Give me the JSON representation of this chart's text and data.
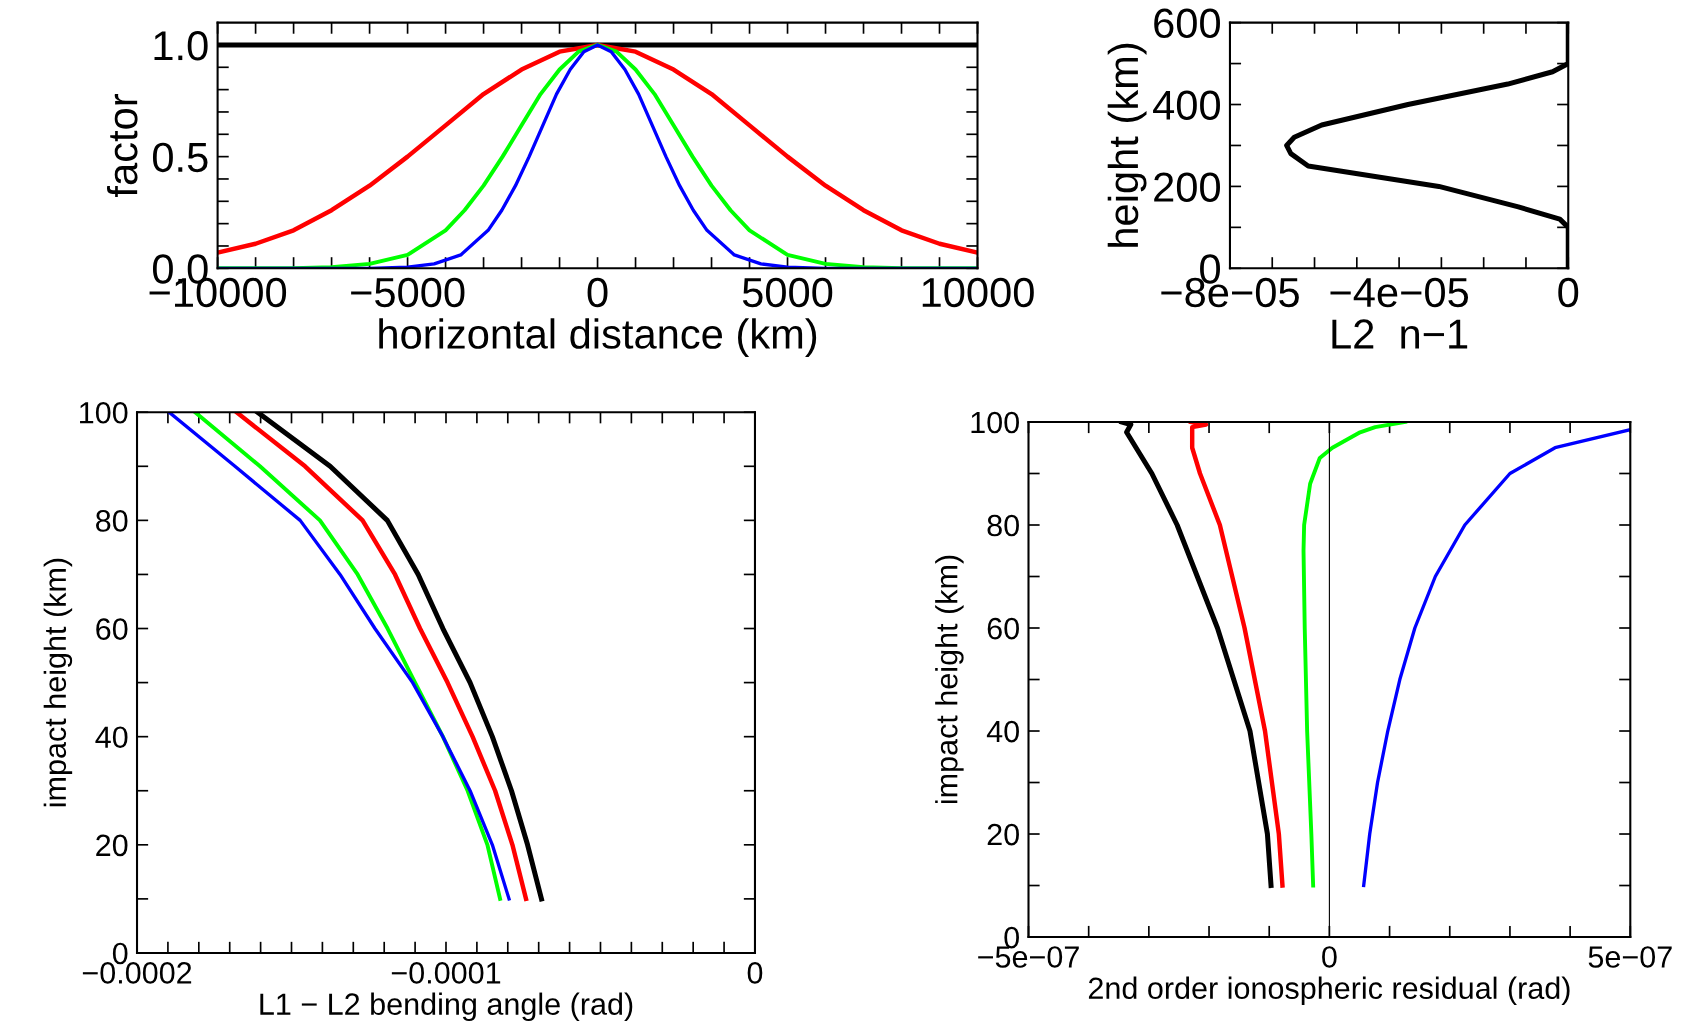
{
  "chart_data": [
    {
      "type": "line",
      "xlabel": "horizontal distance (km)",
      "ylabel": "factor",
      "xlim": [
        -10000,
        10000
      ],
      "ylim": [
        0,
        1.1
      ],
      "xticks": [
        {
          "value": -10000,
          "label": "−10000"
        },
        {
          "value": -9000,
          "label": null
        },
        {
          "value": -8000,
          "label": null
        },
        {
          "value": -7000,
          "label": null
        },
        {
          "value": -6000,
          "label": null
        },
        {
          "value": -5000,
          "label": "−5000"
        },
        {
          "value": -4000,
          "label": null
        },
        {
          "value": -3000,
          "label": null
        },
        {
          "value": -2000,
          "label": null
        },
        {
          "value": -1000,
          "label": null
        },
        0,
        {
          "value": 1000,
          "label": null
        },
        {
          "value": 2000,
          "label": null
        },
        {
          "value": 3000,
          "label": null
        },
        {
          "value": 4000,
          "label": null
        },
        5000,
        {
          "value": 6000,
          "label": null
        },
        {
          "value": 7000,
          "label": null
        },
        {
          "value": 8000,
          "label": null
        },
        {
          "value": 9000,
          "label": null
        },
        10000
      ],
      "yticks": [
        {
          "value": 0,
          "label": "0.0"
        },
        {
          "value": 0.1,
          "label": null
        },
        {
          "value": 0.2,
          "label": null
        },
        {
          "value": 0.3,
          "label": null
        },
        {
          "value": 0.4,
          "label": null
        },
        {
          "value": 0.5,
          "label": "0.5"
        },
        {
          "value": 0.6,
          "label": null
        },
        {
          "value": 0.7,
          "label": null
        },
        {
          "value": 0.8,
          "label": null
        },
        {
          "value": 0.9,
          "label": null
        },
        {
          "value": 1.0,
          "label": "1.0"
        }
      ],
      "line_style": "solid",
      "marker": "none",
      "series": [
        {
          "color": "#000000",
          "x": [
            -10000,
            10000
          ],
          "values": [
            1,
            1
          ]
        },
        {
          "color": "#ff0000",
          "x": [
            -10000,
            -9000,
            -8000,
            -7000,
            -6000,
            -5000,
            -4000,
            -3000,
            -2000,
            -1000,
            0,
            1000,
            2000,
            3000,
            4000,
            5000,
            6000,
            7000,
            8000,
            9000,
            10000
          ],
          "values": [
            0.07,
            0.11,
            0.17,
            0.26,
            0.37,
            0.5,
            0.64,
            0.78,
            0.89,
            0.97,
            1,
            0.97,
            0.89,
            0.78,
            0.64,
            0.5,
            0.37,
            0.26,
            0.17,
            0.11,
            0.07
          ]
        },
        {
          "color": "#00ff00",
          "x": [
            -10000,
            -8000,
            -7000,
            -6000,
            -5000,
            -4000,
            -3500,
            -3000,
            -2500,
            -2000,
            -1500,
            -1000,
            -500,
            0,
            500,
            1000,
            1500,
            2000,
            2500,
            3000,
            3500,
            4000,
            5000,
            6000,
            7000,
            8000,
            10000
          ],
          "values": [
            0,
            0,
            0.005,
            0.02,
            0.06,
            0.17,
            0.26,
            0.37,
            0.5,
            0.64,
            0.78,
            0.89,
            0.97,
            1,
            0.97,
            0.89,
            0.78,
            0.64,
            0.5,
            0.37,
            0.26,
            0.17,
            0.06,
            0.02,
            0.005,
            0,
            0
          ]
        },
        {
          "color": "#0000ff",
          "x": [
            -10000,
            -6000,
            -5000,
            -4300,
            -3600,
            -2880,
            -2520,
            -2160,
            -1800,
            -1440,
            -1080,
            -720,
            -360,
            0,
            360,
            720,
            1080,
            1440,
            1800,
            2160,
            2520,
            2880,
            3600,
            4300,
            5000,
            6000,
            10000
          ],
          "values": [
            0,
            0,
            0.005,
            0.02,
            0.06,
            0.17,
            0.26,
            0.37,
            0.5,
            0.64,
            0.78,
            0.89,
            0.97,
            1,
            0.97,
            0.89,
            0.78,
            0.64,
            0.5,
            0.37,
            0.26,
            0.17,
            0.06,
            0.02,
            0.005,
            0,
            0
          ]
        }
      ]
    },
    {
      "type": "line",
      "xlabel": "L2  n−1",
      "ylabel": "height (km)",
      "xlim": [
        -8e-05,
        0
      ],
      "ylim": [
        0,
        600
      ],
      "xticks": [
        {
          "value": -8e-05,
          "label": "−8e−05"
        },
        {
          "value": -7e-05,
          "label": null
        },
        {
          "value": -6e-05,
          "label": null
        },
        {
          "value": -5e-05,
          "label": null
        },
        {
          "value": -4e-05,
          "label": "−4e−05"
        },
        {
          "value": -3e-05,
          "label": null
        },
        {
          "value": -2e-05,
          "label": null
        },
        {
          "value": -1e-05,
          "label": null
        },
        0
      ],
      "yticks": [
        0,
        {
          "value": 100,
          "label": null
        },
        200,
        {
          "value": 300,
          "label": null
        },
        400,
        {
          "value": 500,
          "label": null
        },
        600
      ],
      "line_style": "solid",
      "marker": "none",
      "series": [
        {
          "color": "#000000",
          "x": [
            0,
            0,
            -2e-06,
            -1.18e-05,
            -3.06e-05,
            -6.15e-05,
            -6.56e-05,
            -6.66e-05,
            -6.48e-05,
            -5.83e-05,
            -3.79e-05,
            -1.43e-05,
            -3.7e-06,
            0,
            0
          ],
          "values": [
            0,
            100,
            120,
            150,
            200,
            250,
            280,
            300,
            320,
            350,
            400,
            450,
            480,
            500,
            600
          ]
        }
      ]
    },
    {
      "type": "line",
      "xlabel": "L1 − L2 bending angle (rad)",
      "ylabel": "impact height (km)",
      "xlim": [
        -0.0002,
        0
      ],
      "ylim": [
        0,
        100
      ],
      "xticks": [
        {
          "value": -0.0002,
          "label": "−0.0002"
        },
        {
          "value": -0.00019,
          "label": null
        },
        {
          "value": -0.00018,
          "label": null
        },
        {
          "value": -0.00017,
          "label": null
        },
        {
          "value": -0.00016,
          "label": null
        },
        {
          "value": -0.00015,
          "label": null
        },
        {
          "value": -0.00014,
          "label": null
        },
        {
          "value": -0.00013,
          "label": null
        },
        {
          "value": -0.00012,
          "label": null
        },
        {
          "value": -0.00011,
          "label": null
        },
        {
          "value": -0.0001,
          "label": "−0.0001"
        },
        {
          "value": -9e-05,
          "label": null
        },
        {
          "value": -8e-05,
          "label": null
        },
        {
          "value": -7e-05,
          "label": null
        },
        {
          "value": -6e-05,
          "label": null
        },
        {
          "value": -5e-05,
          "label": null
        },
        {
          "value": -4e-05,
          "label": null
        },
        {
          "value": -3e-05,
          "label": null
        },
        {
          "value": -2e-05,
          "label": null
        },
        {
          "value": -1e-05,
          "label": null
        },
        0
      ],
      "yticks": [
        0,
        {
          "value": 10,
          "label": null
        },
        20,
        {
          "value": 30,
          "label": null
        },
        40,
        {
          "value": 50,
          "label": null
        },
        60,
        {
          "value": 70,
          "label": null
        },
        80,
        {
          "value": 90,
          "label": null
        },
        100
      ],
      "line_style": "solid",
      "marker": "none",
      "series": [
        {
          "color": "#000000",
          "x": [
            -6.91e-05,
            -7.36e-05,
            -7.88e-05,
            -8.5e-05,
            -9.22e-05,
            -0.000101,
            -0.000109,
            -0.000119,
            -0.0001375,
            -0.000161
          ],
          "values": [
            10,
            20,
            30,
            40,
            50,
            60,
            70,
            80,
            90,
            100
          ]
        },
        {
          "color": "#ff0000",
          "x": [
            -7.41e-05,
            -7.85e-05,
            -8.41e-05,
            -9.14e-05,
            -9.95e-05,
            -0.0001084,
            -0.0001165,
            -0.000127,
            -0.0001456,
            -0.0001678
          ],
          "values": [
            10,
            20,
            30,
            40,
            50,
            60,
            70,
            80,
            90,
            100
          ]
        },
        {
          "color": "#00ff00",
          "x": [
            -8.25e-05,
            -8.66e-05,
            -9.3e-05,
            -0.000101,
            -0.00011,
            -0.0001189,
            -0.0001286,
            -0.0001408,
            -0.0001602,
            -0.0001812
          ],
          "values": [
            10,
            20,
            30,
            40,
            50,
            60,
            70,
            80,
            90,
            100
          ]
        },
        {
          "color": "#0000ff",
          "x": [
            -7.96e-05,
            -8.5e-05,
            -9.22e-05,
            -0.000101,
            -0.0001108,
            -0.000123,
            -0.0001343,
            -0.0001472,
            -0.0001683,
            -0.0001896
          ],
          "values": [
            10,
            20,
            30,
            40,
            50,
            60,
            70,
            80,
            90,
            100
          ]
        }
      ]
    },
    {
      "type": "line",
      "xlabel": "2nd order ionospheric residual (rad)",
      "ylabel": "impact height (km)",
      "xlim": [
        -5e-07,
        5e-07
      ],
      "ylim": [
        0,
        100
      ],
      "xticks": [
        {
          "value": -5e-07,
          "label": "−5e−07"
        },
        {
          "value": -4e-07,
          "label": null
        },
        {
          "value": -3e-07,
          "label": null
        },
        {
          "value": -2e-07,
          "label": null
        },
        {
          "value": -1e-07,
          "label": null
        },
        0,
        {
          "value": 1e-07,
          "label": null
        },
        {
          "value": 2e-07,
          "label": null
        },
        {
          "value": 3e-07,
          "label": null
        },
        {
          "value": 4e-07,
          "label": null
        },
        {
          "value": 5e-07,
          "label": "5e−07"
        }
      ],
      "yticks": [
        0,
        {
          "value": 10,
          "label": null
        },
        20,
        {
          "value": 30,
          "label": null
        },
        40,
        {
          "value": 50,
          "label": null
        },
        60,
        {
          "value": 70,
          "label": null
        },
        80,
        {
          "value": 90,
          "label": null
        },
        100
      ],
      "ref_lines": [
        {
          "axis": "x",
          "value": 0,
          "color": "#000000"
        }
      ],
      "line_style": "solid",
      "marker": "none",
      "series": [
        {
          "color": "#000000",
          "x": [
            -9.7e-08,
            -1.03e-07,
            -1.32e-07,
            -1.86e-07,
            -2.53e-07,
            -2.95e-07,
            -3.37e-07,
            -3.3e-07,
            -3.45e-07
          ],
          "values": [
            10,
            20,
            40,
            60,
            80,
            90,
            98,
            99.5,
            100
          ]
        },
        {
          "color": "#ff0000",
          "x": [
            -7.8e-08,
            -8.4e-08,
            -1.07e-07,
            -1.41e-07,
            -1.82e-07,
            -2.15e-07,
            -2.28e-07,
            -2.28e-07,
            -2.05e-07,
            -2.3e-07
          ],
          "values": [
            10,
            20,
            40,
            60,
            80,
            90,
            95,
            99,
            99.5,
            100
          ]
        },
        {
          "color": "#00ff00",
          "x": [
            -2.7e-08,
            -3e-08,
            -3.7e-08,
            -4.1e-08,
            -4.3e-08,
            -4.2e-08,
            -3.2e-08,
            -1.6e-08,
            5e-09,
            5.1e-08,
            7.6e-08,
            1.26e-07
          ],
          "values": [
            10,
            20,
            40,
            60,
            75,
            80,
            88,
            93,
            95,
            98,
            99,
            100
          ]
        },
        {
          "color": "#0000ff",
          "x": [
            5.7e-08,
            6.7e-08,
            8e-08,
            9.7e-08,
            1.17e-07,
            1.42e-07,
            1.76e-07,
            2.25e-07,
            3e-07,
            3.75e-07,
            5e-07
          ],
          "values": [
            10,
            20,
            30,
            40,
            50,
            60,
            70,
            80,
            90,
            95,
            98.5
          ]
        }
      ]
    }
  ]
}
